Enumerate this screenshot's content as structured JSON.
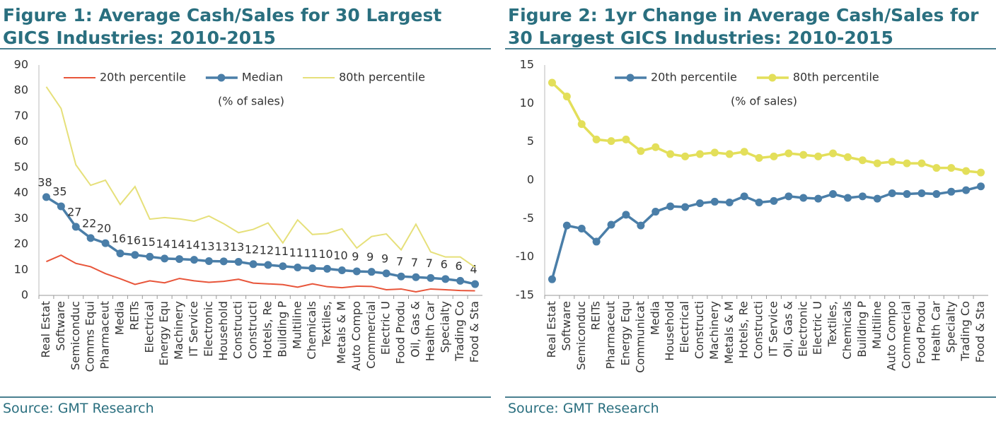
{
  "chart_data": [
    {
      "type": "line",
      "title": "Figure 1: Average Cash/Sales for 30 Largest GICS Industries: 2010-2015",
      "annotation": "(% of sales)",
      "source": "Source: GMT Research",
      "categories": [
        "Real Estat",
        "Software",
        "Semiconduc",
        "Comms Equi",
        "Pharmaceut",
        "Media",
        "REITs",
        "Electrical",
        "Energy Equ",
        "Machinery",
        "IT Service",
        "Electronic",
        "Household",
        "Constructi",
        "Constructi",
        "Hotels, Re",
        "Building P",
        "Multiline",
        "Chemicals",
        "Textiles,",
        "Metals & M",
        "Auto Compo",
        "Commercial",
        "Electric U",
        "Food Produ",
        "Oil, Gas &",
        "Health Car",
        "Specialty",
        "Trading Co",
        "Food & Sta"
      ],
      "series": [
        {
          "name": "20th percentile",
          "color": "#e8553a",
          "markers": false,
          "values": [
            13.2,
            15.7,
            12.5,
            11.2,
            8.5,
            6.5,
            4.3,
            5.7,
            4.9,
            6.6,
            5.7,
            5.1,
            5.5,
            6.3,
            4.8,
            4.5,
            4.2,
            3.2,
            4.5,
            3.4,
            3.0,
            3.6,
            3.5,
            2.2,
            2.5,
            1.4,
            2.5,
            2.2,
            1.9,
            1.8
          ]
        },
        {
          "name": "Median",
          "color": "#4a7ea8",
          "markers": true,
          "values": [
            38.4,
            34.8,
            26.8,
            22.4,
            20.4,
            16.4,
            15.8,
            15.1,
            14.4,
            14.2,
            13.9,
            13.4,
            13.3,
            13.1,
            12.2,
            11.9,
            11.4,
            10.9,
            10.6,
            10.4,
            9.8,
            9.4,
            9.2,
            8.6,
            7.4,
            7.1,
            6.8,
            6.4,
            5.7,
            4.4
          ],
          "value_labels": [
            "38",
            "35",
            "27",
            "22",
            "20",
            "16",
            "16",
            "15",
            "14",
            "14",
            "14",
            "13",
            "13",
            "13",
            "12",
            "12",
            "11",
            "11",
            "11",
            "10",
            "10",
            "9",
            "9",
            "9",
            "7",
            "7",
            "7",
            "6",
            "6",
            "4"
          ]
        },
        {
          "name": "80th percentile",
          "color": "#e6e07a",
          "markers": false,
          "values": [
            81.5,
            73,
            51,
            43,
            45,
            35.5,
            42.5,
            29.8,
            30.4,
            29.9,
            29,
            31,
            28,
            24.5,
            25.8,
            28.3,
            20.5,
            29.5,
            23.8,
            24.2,
            26,
            18.5,
            23,
            24,
            17.8,
            27.8,
            17,
            15,
            15,
            11
          ]
        }
      ],
      "ylim": [
        0,
        90
      ],
      "yticks": [
        0,
        10,
        20,
        30,
        40,
        50,
        60,
        70,
        80,
        90
      ],
      "grid": false
    },
    {
      "type": "line",
      "title": "Figure 2: 1yr Change in Average Cash/Sales for 30 Largest GICS Industries: 2010-2015",
      "annotation": "(% of sales)",
      "source": "Source: GMT Research",
      "categories": [
        "Real Estat",
        "Software",
        "Semiconduc",
        "REITs",
        "Pharmaceut",
        "Energy Equ",
        "Communicat",
        "Media",
        "Household",
        "Electrical",
        "Constructi",
        "Machinery",
        "Metals & M",
        "Hotels, Re",
        "Constructi",
        "IT Service",
        "Oil, Gas &",
        "Electronic",
        "Electric U",
        "Textiles,",
        "Chemicals",
        "Building P",
        "Multiline",
        "Auto Compo",
        "Commercial",
        "Food Produ",
        "Health Car",
        "Specialty",
        "Trading Co",
        "Food & Sta"
      ],
      "series": [
        {
          "name": "20th percentile",
          "color": "#4a7ea8",
          "markers": true,
          "values": [
            -12.9,
            -5.9,
            -6.3,
            -8,
            -5.8,
            -4.5,
            -5.9,
            -4.1,
            -3.4,
            -3.5,
            -3,
            -2.8,
            -2.9,
            -2.1,
            -2.9,
            -2.7,
            -2.1,
            -2.3,
            -2.4,
            -1.8,
            -2.3,
            -2.1,
            -2.4,
            -1.7,
            -1.8,
            -1.7,
            -1.8,
            -1.5,
            -1.3,
            -0.8
          ]
        },
        {
          "name": "80th percentile",
          "color": "#e3df5a",
          "markers": true,
          "values": [
            12.7,
            10.9,
            7.3,
            5.3,
            5.1,
            5.3,
            3.8,
            4.3,
            3.4,
            3.1,
            3.4,
            3.6,
            3.4,
            3.7,
            2.9,
            3.1,
            3.5,
            3.3,
            3.1,
            3.5,
            3.0,
            2.6,
            2.2,
            2.4,
            2.2,
            2.2,
            1.6,
            1.6,
            1.2,
            1.0
          ]
        }
      ],
      "ylim": [
        -15,
        15
      ],
      "yticks": [
        -15,
        -10,
        -5,
        0,
        5,
        10,
        15
      ],
      "grid": false
    }
  ]
}
